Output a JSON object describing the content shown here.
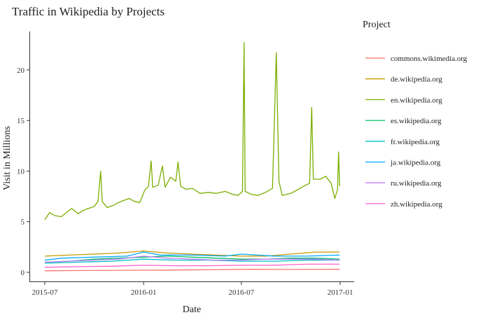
{
  "chart_data": {
    "type": "line",
    "title": "Traffic in Wikipedia by Projects",
    "xlabel": "Date",
    "ylabel": "Visit in Millions",
    "x_range": [
      "2015-07-01",
      "2017-01-01"
    ],
    "ylim": [
      -0.9,
      23.8
    ],
    "x_ticks": [
      {
        "date": "2015-07-01",
        "label": "2015-07"
      },
      {
        "date": "2016-01-01",
        "label": "2016-01"
      },
      {
        "date": "2016-07-01",
        "label": "2016-07"
      },
      {
        "date": "2017-01-01",
        "label": "2017-01"
      }
    ],
    "y_ticks": [
      {
        "value": 0,
        "label": "0"
      },
      {
        "value": 5,
        "label": "5"
      },
      {
        "value": 10,
        "label": "10"
      },
      {
        "value": 15,
        "label": "15"
      },
      {
        "value": 20,
        "label": "20"
      }
    ],
    "grid": false,
    "legend": {
      "title": "Project",
      "position": "right"
    },
    "series": [
      {
        "name": "commons.wikimedia.org",
        "color": "#F8766D",
        "points": [
          [
            "2015-07-01",
            0.15
          ],
          [
            "2015-09-15",
            0.18
          ],
          [
            "2015-12-01",
            0.2
          ],
          [
            "2016-02-15",
            0.22
          ],
          [
            "2016-05-01",
            0.25
          ],
          [
            "2016-07-15",
            0.3
          ],
          [
            "2016-10-01",
            0.28
          ],
          [
            "2016-12-31",
            0.3
          ]
        ]
      },
      {
        "name": "de.wikipedia.org",
        "color": "#C49A00",
        "points": [
          [
            "2015-07-01",
            1.6
          ],
          [
            "2015-08-15",
            1.7
          ],
          [
            "2015-10-01",
            1.8
          ],
          [
            "2015-11-15",
            1.9
          ],
          [
            "2016-01-01",
            2.1
          ],
          [
            "2016-02-15",
            1.9
          ],
          [
            "2016-04-01",
            1.8
          ],
          [
            "2016-05-15",
            1.7
          ],
          [
            "2016-07-01",
            1.6
          ],
          [
            "2016-08-15",
            1.6
          ],
          [
            "2016-10-01",
            1.8
          ],
          [
            "2016-11-15",
            2.0
          ],
          [
            "2016-12-31",
            2.0
          ]
        ]
      },
      {
        "name": "en.wikipedia.org",
        "color": "#7CAE00",
        "points": [
          [
            "2015-07-01",
            5.2
          ],
          [
            "2015-07-10",
            5.9
          ],
          [
            "2015-07-20",
            5.6
          ],
          [
            "2015-08-01",
            5.5
          ],
          [
            "2015-08-10",
            5.9
          ],
          [
            "2015-08-20",
            6.3
          ],
          [
            "2015-09-01",
            5.8
          ],
          [
            "2015-09-10",
            6.1
          ],
          [
            "2015-09-20",
            6.3
          ],
          [
            "2015-10-01",
            6.5
          ],
          [
            "2015-10-08",
            7.0
          ],
          [
            "2015-10-13",
            10.0
          ],
          [
            "2015-10-16",
            7.0
          ],
          [
            "2015-10-25",
            6.4
          ],
          [
            "2015-11-05",
            6.6
          ],
          [
            "2015-11-15",
            6.9
          ],
          [
            "2015-11-25",
            7.1
          ],
          [
            "2015-12-05",
            7.3
          ],
          [
            "2015-12-15",
            7.0
          ],
          [
            "2015-12-25",
            6.9
          ],
          [
            "2016-01-03",
            8.1
          ],
          [
            "2016-01-10",
            8.5
          ],
          [
            "2016-01-15",
            11.0
          ],
          [
            "2016-01-18",
            8.4
          ],
          [
            "2016-01-28",
            8.6
          ],
          [
            "2016-02-05",
            10.5
          ],
          [
            "2016-02-10",
            8.4
          ],
          [
            "2016-02-20",
            9.4
          ],
          [
            "2016-03-01",
            9.0
          ],
          [
            "2016-03-05",
            10.9
          ],
          [
            "2016-03-10",
            8.5
          ],
          [
            "2016-03-20",
            8.2
          ],
          [
            "2016-04-01",
            8.3
          ],
          [
            "2016-04-15",
            7.8
          ],
          [
            "2016-05-01",
            7.9
          ],
          [
            "2016-05-15",
            7.8
          ],
          [
            "2016-06-01",
            8.0
          ],
          [
            "2016-06-15",
            7.7
          ],
          [
            "2016-06-25",
            7.6
          ],
          [
            "2016-07-03",
            8.0
          ],
          [
            "2016-07-06",
            22.7
          ],
          [
            "2016-07-08",
            8.0
          ],
          [
            "2016-07-20",
            7.7
          ],
          [
            "2016-08-01",
            7.6
          ],
          [
            "2016-08-15",
            7.9
          ],
          [
            "2016-08-28",
            8.3
          ],
          [
            "2016-09-04",
            21.7
          ],
          [
            "2016-09-09",
            9.0
          ],
          [
            "2016-09-15",
            7.6
          ],
          [
            "2016-10-01",
            7.8
          ],
          [
            "2016-10-15",
            8.2
          ],
          [
            "2016-10-25",
            8.5
          ],
          [
            "2016-11-05",
            8.8
          ],
          [
            "2016-11-09",
            16.3
          ],
          [
            "2016-11-12",
            9.2
          ],
          [
            "2016-11-25",
            9.2
          ],
          [
            "2016-12-05",
            9.5
          ],
          [
            "2016-12-15",
            8.8
          ],
          [
            "2016-12-22",
            7.3
          ],
          [
            "2016-12-27",
            8.2
          ],
          [
            "2016-12-29",
            11.9
          ],
          [
            "2016-12-31",
            8.5
          ]
        ]
      },
      {
        "name": "es.wikipedia.org",
        "color": "#00BE67",
        "points": [
          [
            "2015-07-01",
            1.0
          ],
          [
            "2015-08-15",
            1.1
          ],
          [
            "2015-10-01",
            1.3
          ],
          [
            "2015-11-15",
            1.4
          ],
          [
            "2016-01-01",
            1.5
          ],
          [
            "2016-02-15",
            1.6
          ],
          [
            "2016-04-01",
            1.5
          ],
          [
            "2016-05-15",
            1.4
          ],
          [
            "2016-07-01",
            1.3
          ],
          [
            "2016-08-15",
            1.3
          ],
          [
            "2016-10-01",
            1.4
          ],
          [
            "2016-11-15",
            1.4
          ],
          [
            "2016-12-31",
            1.3
          ]
        ]
      },
      {
        "name": "fr.wikipedia.org",
        "color": "#00BFC4",
        "points": [
          [
            "2015-07-01",
            0.9
          ],
          [
            "2015-09-01",
            1.0
          ],
          [
            "2015-11-01",
            1.1
          ],
          [
            "2016-01-01",
            1.3
          ],
          [
            "2016-03-01",
            1.2
          ],
          [
            "2016-05-01",
            1.2
          ],
          [
            "2016-07-01",
            1.1
          ],
          [
            "2016-09-01",
            1.1
          ],
          [
            "2016-11-01",
            1.2
          ],
          [
            "2016-12-31",
            1.2
          ]
        ]
      },
      {
        "name": "ja.wikipedia.org",
        "color": "#00A9FF",
        "points": [
          [
            "2015-07-01",
            1.2
          ],
          [
            "2015-08-01",
            1.4
          ],
          [
            "2015-10-01",
            1.5
          ],
          [
            "2015-12-01",
            1.6
          ],
          [
            "2016-01-01",
            2.0
          ],
          [
            "2016-02-01",
            1.7
          ],
          [
            "2016-04-01",
            1.7
          ],
          [
            "2016-06-01",
            1.6
          ],
          [
            "2016-07-01",
            1.8
          ],
          [
            "2016-09-01",
            1.6
          ],
          [
            "2016-11-01",
            1.6
          ],
          [
            "2016-12-31",
            1.7
          ]
        ]
      },
      {
        "name": "ru.wikipedia.org",
        "color": "#C77CFF",
        "points": [
          [
            "2015-07-01",
            1.0
          ],
          [
            "2015-08-15",
            1.1
          ],
          [
            "2015-10-01",
            1.2
          ],
          [
            "2015-11-15",
            1.3
          ],
          [
            "2016-01-01",
            1.6
          ],
          [
            "2016-02-15",
            1.4
          ],
          [
            "2016-04-01",
            1.3
          ],
          [
            "2016-05-15",
            1.2
          ],
          [
            "2016-07-01",
            1.2
          ],
          [
            "2016-08-15",
            1.3
          ],
          [
            "2016-10-01",
            1.3
          ],
          [
            "2016-11-15",
            1.3
          ],
          [
            "2016-12-31",
            1.2
          ]
        ]
      },
      {
        "name": "zh.wikipedia.org",
        "color": "#FF61CC",
        "points": [
          [
            "2015-07-01",
            0.5
          ],
          [
            "2015-09-01",
            0.55
          ],
          [
            "2015-11-01",
            0.6
          ],
          [
            "2016-01-01",
            0.7
          ],
          [
            "2016-03-01",
            0.65
          ],
          [
            "2016-05-01",
            0.65
          ],
          [
            "2016-07-01",
            0.7
          ],
          [
            "2016-09-01",
            0.7
          ],
          [
            "2016-11-01",
            0.8
          ],
          [
            "2016-12-31",
            0.8
          ]
        ]
      }
    ]
  }
}
